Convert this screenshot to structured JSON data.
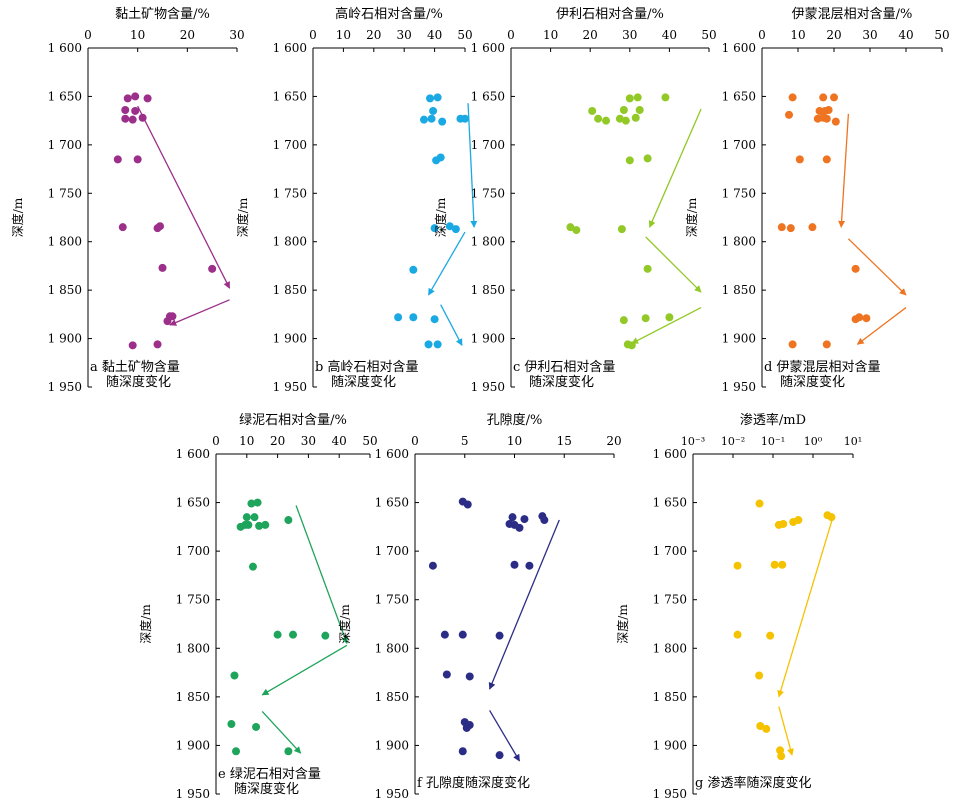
{
  "chart_data": [
    {
      "id": "a",
      "type": "scatter",
      "title": "黏土矿物含量/%",
      "ylabel": "深度/m",
      "xscale": "linear",
      "xlim": [
        0,
        30
      ],
      "xticks": [
        "0",
        "10",
        "20",
        "30"
      ],
      "ylim": [
        1600,
        1950
      ],
      "yticks": [
        "1 600",
        "1 650",
        "1 700",
        "1 750",
        "1 800",
        "1 850",
        "1 900",
        "1 950"
      ],
      "color": "#9b2f8a",
      "caption": [
        "a 黏土矿物含量",
        "随深度变化"
      ],
      "x": [
        8,
        9.5,
        12,
        7.5,
        9.5,
        7.5,
        9,
        11,
        6,
        10,
        7,
        14,
        14.5,
        15,
        25,
        16.5,
        17,
        16,
        9,
        14
      ],
      "y": [
        1652,
        1650,
        1652,
        1664,
        1665,
        1673,
        1674,
        1672,
        1715,
        1715,
        1785,
        1786,
        1784,
        1827,
        1828,
        1877,
        1877,
        1882,
        1907,
        1906
      ],
      "trend_arrows": [
        {
          "from": [
            10,
            1660
          ],
          "to": [
            28.5,
            1848
          ]
        },
        {
          "from": [
            28.5,
            1860
          ],
          "to": [
            16.5,
            1886
          ]
        }
      ]
    },
    {
      "id": "b",
      "type": "scatter",
      "title": "高岭石相对含量/%",
      "ylabel": "深度/m",
      "xscale": "linear",
      "xlim": [
        0,
        50
      ],
      "xticks": [
        "0",
        "10",
        "20",
        "30",
        "40",
        "50"
      ],
      "ylim": [
        1600,
        1950
      ],
      "yticks": [
        "1 600",
        "1 650",
        "1 700",
        "1 750",
        "1 800",
        "1 850",
        "1 900",
        "1 950"
      ],
      "color": "#1aa9e3",
      "caption": [
        "b 高岭石相对含量",
        "随深度变化"
      ],
      "x": [
        38.5,
        41,
        39.5,
        36.5,
        39,
        42.5,
        48.5,
        50,
        42,
        40.5,
        40,
        45,
        47,
        33,
        28,
        33,
        40,
        38,
        41
      ],
      "y": [
        1652,
        1651,
        1665,
        1674,
        1673,
        1676,
        1673,
        1673,
        1713,
        1716,
        1786,
        1784,
        1787,
        1829,
        1878,
        1878,
        1880,
        1906,
        1906
      ],
      "trend_arrows": [
        {
          "from": [
            51,
            1657
          ],
          "to": [
            53,
            1785
          ]
        },
        {
          "from": [
            50,
            1790
          ],
          "to": [
            38,
            1855
          ]
        },
        {
          "from": [
            42,
            1865
          ],
          "to": [
            49,
            1907
          ]
        }
      ]
    },
    {
      "id": "c",
      "type": "scatter",
      "title": "伊利石相对含量/%",
      "ylabel": "深度/m",
      "xscale": "linear",
      "xlim": [
        0,
        50
      ],
      "xticks": [
        "0",
        "10",
        "20",
        "30",
        "40",
        "50"
      ],
      "ylim": [
        1600,
        1950
      ],
      "yticks": [
        "1 600",
        "1 650",
        "1 700",
        "1 750",
        "1 800",
        "1 850",
        "1 900",
        "1 950"
      ],
      "color": "#92c926",
      "caption": [
        "c 伊利石相对含量",
        "随深度变化"
      ],
      "x": [
        30,
        32,
        39,
        20.5,
        28.5,
        32.5,
        22,
        24,
        27.5,
        29,
        31.5,
        30,
        34.5,
        15,
        16.5,
        28,
        34.5,
        28.5,
        34,
        40,
        29.5,
        30.5
      ],
      "y": [
        1652,
        1651,
        1651,
        1665,
        1664,
        1664,
        1673,
        1675,
        1673,
        1675,
        1672,
        1716,
        1714,
        1785,
        1788,
        1787,
        1828,
        1881,
        1879,
        1878,
        1906,
        1907
      ],
      "trend_arrows": [
        {
          "from": [
            48,
            1663
          ],
          "to": [
            35,
            1785
          ]
        },
        {
          "from": [
            34,
            1795
          ],
          "to": [
            48,
            1852
          ]
        },
        {
          "from": [
            48,
            1868
          ],
          "to": [
            30.5,
            1905
          ]
        }
      ]
    },
    {
      "id": "d",
      "type": "scatter",
      "title": "伊蒙混层相对含量/%",
      "ylabel": "深度/m",
      "xscale": "linear",
      "xlim": [
        0,
        50
      ],
      "xticks": [
        "0",
        "10",
        "20",
        "30",
        "40",
        "50"
      ],
      "ylim": [
        1600,
        1950
      ],
      "yticks": [
        "1 600",
        "1 650",
        "1 700",
        "1 750",
        "1 800",
        "1 850",
        "1 900",
        "1 950"
      ],
      "color": "#ee7421",
      "caption": [
        "d 伊蒙混层相对含量",
        "随深度变化"
      ],
      "x": [
        8.5,
        17,
        20,
        18.5,
        16,
        17.5,
        7.5,
        18,
        20.5,
        15.5,
        17,
        10.5,
        18,
        5.5,
        8,
        14,
        26,
        27,
        26,
        29,
        8.5,
        18
      ],
      "y": [
        1651,
        1651,
        1651,
        1664,
        1665,
        1665,
        1669,
        1673,
        1676,
        1673,
        1672,
        1715,
        1715,
        1785,
        1786,
        1785,
        1828,
        1878,
        1880,
        1879,
        1906,
        1906
      ],
      "trend_arrows": [
        {
          "from": [
            24,
            1668
          ],
          "to": [
            22,
            1785
          ]
        },
        {
          "from": [
            24,
            1797
          ],
          "to": [
            40,
            1855
          ]
        },
        {
          "from": [
            40,
            1868
          ],
          "to": [
            26.5,
            1906
          ]
        }
      ]
    },
    {
      "id": "e",
      "type": "scatter",
      "title": "绿泥石相对含量/%",
      "ylabel": "深度/m",
      "xscale": "linear",
      "xlim": [
        0,
        50
      ],
      "xticks": [
        "0",
        "10",
        "20",
        "30",
        "40",
        "50"
      ],
      "ylim": [
        1600,
        1950
      ],
      "yticks": [
        "1 600",
        "1 650",
        "1 700",
        "1 750",
        "1 800",
        "1 850",
        "1 900",
        "1 950"
      ],
      "color": "#1fa45b",
      "caption": [
        "e 绿泥石相对含量",
        "随深度变化"
      ],
      "x": [
        11.5,
        13.5,
        10,
        12.5,
        9.5,
        8,
        10.5,
        14,
        16,
        23.5,
        12,
        20,
        25,
        35.5,
        6,
        5,
        13,
        6.5,
        23.5
      ],
      "y": [
        1651,
        1650,
        1665,
        1665,
        1673,
        1675,
        1673,
        1674,
        1673,
        1668,
        1716,
        1786,
        1786,
        1787,
        1828,
        1878,
        1881,
        1906,
        1906
      ],
      "trend_arrows": [
        {
          "from": [
            26,
            1653
          ],
          "to": [
            42.5,
            1795
          ]
        },
        {
          "from": [
            42.5,
            1797
          ],
          "to": [
            15,
            1848
          ]
        },
        {
          "from": [
            15,
            1865
          ],
          "to": [
            27.5,
            1908
          ]
        }
      ]
    },
    {
      "id": "f",
      "type": "scatter",
      "title": "孔隙度/%",
      "ylabel": "深度/m",
      "xscale": "linear",
      "xlim": [
        0,
        20
      ],
      "xticks": [
        "0",
        "5",
        "10",
        "15",
        "20"
      ],
      "ylim": [
        1600,
        1950
      ],
      "yticks": [
        "1 600",
        "1 650",
        "1 700",
        "1 750",
        "1 800",
        "1 850",
        "1 900",
        "1 950"
      ],
      "color": "#2b2c86",
      "caption": [
        "f 孔隙度随深度变化"
      ],
      "x": [
        4.8,
        5.3,
        9.8,
        11,
        12.8,
        13,
        9.5,
        10,
        10.5,
        1.8,
        10,
        11.5,
        3,
        4.8,
        8.5,
        3.2,
        5.5,
        5,
        5.5,
        5.2,
        4.8,
        8.5
      ],
      "y": [
        1649,
        1652,
        1665,
        1667,
        1664,
        1668,
        1672,
        1673,
        1676,
        1715,
        1714,
        1715,
        1786,
        1786,
        1787,
        1827,
        1829,
        1876,
        1879,
        1882,
        1906,
        1910
      ],
      "trend_arrows": [
        {
          "from": [
            14.5,
            1668
          ],
          "to": [
            7.5,
            1842
          ]
        },
        {
          "from": [
            7.5,
            1864
          ],
          "to": [
            10.5,
            1916
          ]
        }
      ]
    },
    {
      "id": "g",
      "type": "scatter",
      "title": "渗透率/mD",
      "ylabel": "深度/m",
      "xscale": "log",
      "xlim": [
        0.001,
        10
      ],
      "xticks": [
        "10⁻³",
        "10⁻²",
        "10⁻¹",
        "10⁰",
        "10¹"
      ],
      "ylim": [
        1600,
        1950
      ],
      "yticks": [
        "1 600",
        "1 650",
        "1 700",
        "1 750",
        "1 800",
        "1 850",
        "1 900",
        "1 950"
      ],
      "color": "#f5c200",
      "caption": [
        "g 渗透率随深度变化"
      ],
      "x": [
        0.046,
        2.3,
        2.9,
        0.32,
        0.14,
        0.18,
        0.43,
        0.013,
        0.11,
        0.17,
        0.013,
        0.085,
        0.045,
        0.048,
        0.068,
        0.15,
        0.16
      ],
      "y": [
        1651,
        1663,
        1665,
        1670,
        1673,
        1672,
        1668,
        1715,
        1714,
        1714,
        1786,
        1787,
        1828,
        1880,
        1883,
        1905,
        1911
      ],
      "trend_arrows": [
        {
          "from": [
            3.2,
            1664
          ],
          "to": [
            0.14,
            1850
          ]
        },
        {
          "from": [
            0.14,
            1860
          ],
          "to": [
            0.3,
            1910
          ]
        }
      ]
    }
  ]
}
